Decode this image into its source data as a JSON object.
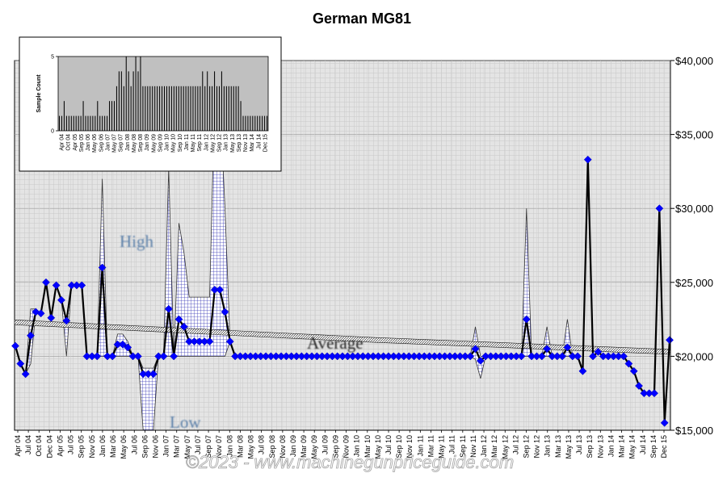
{
  "chart_data": [
    {
      "type": "line",
      "title": "German MG81",
      "xlabel": "",
      "ylabel": "",
      "ylim": [
        15000,
        40000
      ],
      "yticks": [
        "$15,000",
        "$20,000",
        "$25,000",
        "$30,000",
        "$35,000",
        "$40,000"
      ],
      "yaxis_position": "right",
      "xticks": [
        "Apr 04",
        "Jul 04",
        "Oct 04",
        "Dec 04",
        "Apr 05",
        "Jul 05",
        "Sep 05",
        "Nov 05",
        "Jan 06",
        "Mar 06",
        "May 06",
        "Jul 06",
        "Sep 06",
        "Nov 06",
        "Jan 07",
        "Mar 07",
        "May 07",
        "Jul 07",
        "Sep 07",
        "Nov 07",
        "Jan 08",
        "Mar 08",
        "May 08",
        "Jul 08",
        "Sep 08",
        "Nov 08",
        "Jan 09",
        "Mar 09",
        "May 09",
        "Jul 09",
        "Sep 09",
        "Nov 09",
        "Jan 10",
        "Mar 10",
        "May 10",
        "Jul 10",
        "Sep 10",
        "Nov 10",
        "Jan 11",
        "Mar 11",
        "May 11",
        "Jul 11",
        "Sep 11",
        "Nov 11",
        "Jan 12",
        "Mar 12",
        "May 12",
        "Jul 12",
        "Sep 12",
        "Nov 12",
        "Jan 13",
        "Mar 13",
        "May 13",
        "Jul 13",
        "Sep 13",
        "Nov 13",
        "Jan 14",
        "Mar 14",
        "May 14",
        "Jul 14",
        "Sep 14",
        "Dec 15"
      ],
      "annotations": [
        "High",
        "Average",
        "Low"
      ],
      "watermark": "©2023 - www.machinegunpriceguide.com",
      "grid": true,
      "series": [
        {
          "role": "average-price",
          "color": "#0000ff",
          "values": [
            20700,
            19500,
            18800,
            21400,
            23000,
            22900,
            25000,
            22600,
            24800,
            23800,
            22400,
            24800,
            24800,
            24800,
            20000,
            20000,
            20000,
            26000,
            20000,
            20000,
            20800,
            20800,
            20600,
            20000,
            20000,
            18800,
            18800,
            18800,
            20000,
            20000,
            23200,
            20000,
            22500,
            22000,
            21000,
            21000,
            21000,
            21000,
            21000,
            24500,
            24500,
            23000,
            21000,
            20000,
            20000,
            20000,
            20000,
            20000,
            20000,
            20000,
            20000,
            20000,
            20000,
            20000,
            20000,
            20000,
            20000,
            20000,
            20000,
            20000,
            20000,
            20000,
            20000,
            20000,
            20000,
            20000,
            20000,
            20000,
            20000,
            20000,
            20000,
            20000,
            20000,
            20000,
            20000,
            20000,
            20000,
            20000,
            20000,
            20000,
            20000,
            20000,
            20000,
            20000,
            20000,
            20000,
            20000,
            20000,
            20000,
            20000,
            20500,
            19700,
            20000,
            20000,
            20000,
            20000,
            20000,
            20000,
            20000,
            20000,
            22500,
            20000,
            20000,
            20000,
            20500,
            20000,
            20000,
            20000,
            20600,
            20000,
            20000,
            19000,
            33300,
            20000,
            20300,
            20000,
            20000,
            20000,
            20000,
            20000,
            19500,
            19000,
            18000,
            17500,
            17500,
            17500,
            30000,
            15500,
            21100
          ]
        },
        {
          "role": "high-price",
          "values": [
            20700,
            19500,
            18800,
            23200,
            23200,
            22900,
            25000,
            22600,
            24800,
            23800,
            22400,
            24800,
            24800,
            24800,
            20000,
            20000,
            20000,
            32000,
            20000,
            20000,
            21500,
            21500,
            21000,
            20000,
            20000,
            19200,
            19200,
            19200,
            20000,
            20000,
            32700,
            20000,
            29000,
            27000,
            24000,
            24000,
            24000,
            24000,
            24000,
            37500,
            37500,
            30000,
            21000,
            20000,
            20000,
            20000,
            20000,
            20000,
            20000,
            20000,
            20000,
            20000,
            20000,
            20000,
            20000,
            20000,
            20000,
            20000,
            20000,
            20000,
            20000,
            20000,
            20000,
            20000,
            20000,
            20000,
            20000,
            20000,
            20000,
            20000,
            20000,
            20000,
            20000,
            20000,
            20000,
            20000,
            20000,
            20000,
            20000,
            20000,
            20000,
            20000,
            20000,
            20000,
            20000,
            20000,
            20000,
            20000,
            20000,
            20000,
            22000,
            20000,
            20000,
            20000,
            20000,
            20000,
            20000,
            20000,
            20000,
            20000,
            30000,
            20000,
            20000,
            20000,
            22000,
            20000,
            20000,
            20000,
            22500,
            20000,
            20000,
            19000,
            33300,
            20000,
            20300,
            20000,
            20000,
            20000,
            20000,
            20000,
            19500,
            19000,
            18000,
            17500,
            17500,
            17500,
            30000,
            15500,
            21100
          ]
        },
        {
          "role": "low-price",
          "values": [
            20700,
            19500,
            18800,
            19500,
            23000,
            22900,
            25000,
            22600,
            24800,
            23800,
            20000,
            24800,
            24800,
            24800,
            20000,
            20000,
            20000,
            20000,
            20000,
            20000,
            20000,
            20000,
            20000,
            20000,
            20000,
            15000,
            15000,
            15000,
            20000,
            20000,
            20000,
            20000,
            20000,
            20000,
            20000,
            20000,
            20000,
            20000,
            20000,
            20000,
            20000,
            20000,
            21000,
            20000,
            20000,
            20000,
            20000,
            20000,
            20000,
            20000,
            20000,
            20000,
            20000,
            20000,
            20000,
            20000,
            20000,
            20000,
            20000,
            20000,
            20000,
            20000,
            20000,
            20000,
            20000,
            20000,
            20000,
            20000,
            20000,
            20000,
            20000,
            20000,
            20000,
            20000,
            20000,
            20000,
            20000,
            20000,
            20000,
            20000,
            20000,
            20000,
            20000,
            20000,
            20000,
            20000,
            20000,
            20000,
            20000,
            20000,
            19800,
            18500,
            20000,
            20000,
            20000,
            20000,
            20000,
            20000,
            20000,
            20000,
            20000,
            20000,
            20000,
            20000,
            20000,
            20000,
            20000,
            20000,
            20000,
            20000,
            20000,
            19000,
            33300,
            20000,
            20300,
            20000,
            20000,
            20000,
            20000,
            20000,
            19500,
            19000,
            18000,
            17500,
            17500,
            17500,
            30000,
            15500,
            21100
          ]
        },
        {
          "role": "average-trend",
          "values": [
            22300,
            21100,
            20300
          ]
        }
      ]
    },
    {
      "type": "bar",
      "ylabel": "Sample Count",
      "ylim": [
        0,
        5
      ],
      "yticks": [
        "0",
        "5"
      ],
      "xticks": [
        "Apr 04",
        "Oct 04",
        "Apr 05",
        "Sep 05",
        "Jan 06",
        "May 06",
        "Sep 06",
        "Jan 07",
        "May 07",
        "Sep 07",
        "Jan 08",
        "May 08",
        "Sep 08",
        "Jan 09",
        "May 09",
        "Sep 09",
        "Jan 10",
        "May 10",
        "Sep 10",
        "Jan 11",
        "May 11",
        "Sep 11",
        "Jan 12",
        "May 12",
        "Sep 12",
        "Jan 13",
        "May 13",
        "Sep 13",
        "Nov 13",
        "Mar 14",
        "Jul 14",
        "Dec 15"
      ],
      "values": [
        1,
        1,
        2,
        1,
        1,
        1,
        1,
        1,
        1,
        1,
        2,
        1,
        1,
        1,
        1,
        1,
        2,
        1,
        1,
        1,
        1,
        2,
        2,
        2,
        3,
        4,
        4,
        3,
        5,
        4,
        3,
        4,
        5,
        4,
        5,
        3,
        3,
        3,
        3,
        3,
        3,
        3,
        3,
        3,
        3,
        3,
        3,
        3,
        3,
        3,
        3,
        3,
        3,
        3,
        3,
        3,
        3,
        3,
        3,
        3,
        4,
        3,
        4,
        3,
        3,
        4,
        3,
        3,
        4,
        3,
        3,
        3,
        3,
        3,
        3,
        3,
        2,
        1,
        1,
        1,
        1,
        1,
        1,
        1,
        1,
        1,
        1,
        1
      ]
    }
  ]
}
